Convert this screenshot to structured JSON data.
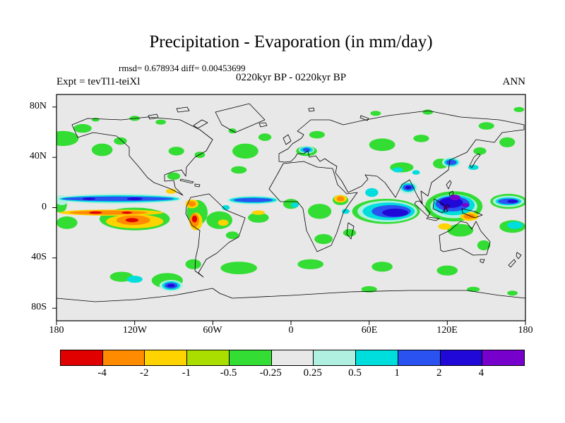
{
  "header": {
    "title": "Precipitation - Evaporation (in mm/day)",
    "stats_line": "rmsd= 0.678934  diff= 0.00453699",
    "comparison_line": "0220kyr BP - 0220kyr BP",
    "expt_label": "Expt = tevTl1-teiXl",
    "season_label": "ANN"
  },
  "axes": {
    "lat_labels": [
      "80N",
      "40N",
      "0",
      "40S",
      "80S"
    ],
    "lat_ticks_deg": [
      80,
      40,
      0,
      -40,
      -80
    ],
    "lon_labels": [
      "180",
      "120W",
      "60W",
      "0",
      "60E",
      "120E",
      "180"
    ],
    "lon_ticks_deg": [
      -180,
      -120,
      -60,
      0,
      60,
      120,
      180
    ]
  },
  "colorbar": {
    "colors": [
      "#e10000",
      "#ff8c00",
      "#ffd300",
      "#aadd00",
      "#33dd33",
      "#e8e8e8",
      "#b0f0e0",
      "#00dddd",
      "#2a52f0",
      "#2008d8",
      "#7700cc"
    ],
    "labels": [
      "-4",
      "-2",
      "-1",
      "-0.5",
      "-0.25",
      "0.25",
      "0.5",
      "1",
      "2",
      "4"
    ]
  },
  "chart_data": {
    "type": "heatmap",
    "subtype": "filled-contour world map",
    "variable": "Precipitation - Evaporation",
    "units": "mm/day",
    "rmsd": 0.678934,
    "diff": 0.00453699,
    "experiment": "tevTl1-teiXl",
    "period": "0220kyr BP - 0220kyr BP",
    "season": "ANN",
    "lon_range": [
      -180,
      180
    ],
    "lat_range": [
      -90,
      90
    ],
    "contour_levels": [
      -4,
      -2,
      -1,
      -0.5,
      -0.25,
      0.25,
      0.5,
      1,
      2,
      4
    ],
    "bins": [
      {
        "range": "< -4",
        "color": "#e10000"
      },
      {
        "range": "-4 to -2",
        "color": "#ff8c00"
      },
      {
        "range": "-2 to -1",
        "color": "#ffd300"
      },
      {
        "range": "-1 to -0.5",
        "color": "#aadd00"
      },
      {
        "range": "-0.5 to -0.25",
        "color": "#33dd33"
      },
      {
        "range": "-0.25 to 0.25",
        "color": "#e8e8e8"
      },
      {
        "range": "0.25 to 0.5",
        "color": "#b0f0e0"
      },
      {
        "range": "0.5 to 1",
        "color": "#00dddd"
      },
      {
        "range": "1 to 2",
        "color": "#2a52f0"
      },
      {
        "range": "2 to 4",
        "color": "#2008d8"
      },
      {
        "range": "> 4",
        "color": "#7700cc"
      }
    ],
    "feature_format": [
      "color_index",
      "lon_center_deg",
      "lat_center_deg",
      "rx_deg",
      "ry_deg"
    ],
    "features": [
      [
        4,
        -175,
        55,
        12,
        6
      ],
      [
        4,
        -160,
        63,
        7,
        3.5
      ],
      [
        4,
        -145,
        46,
        8,
        5
      ],
      [
        4,
        -131,
        53,
        5,
        3
      ],
      [
        4,
        -120,
        71,
        4,
        2
      ],
      [
        4,
        -100,
        68,
        4,
        2
      ],
      [
        4,
        -88,
        45,
        6,
        3.5
      ],
      [
        4,
        -70,
        42,
        4,
        2.5
      ],
      [
        4,
        -35,
        45,
        10,
        6
      ],
      [
        4,
        -20,
        56,
        5,
        3
      ],
      [
        4,
        -45,
        61,
        3,
        2
      ],
      [
        4,
        20,
        58,
        6,
        3
      ],
      [
        4,
        70,
        50,
        10,
        5
      ],
      [
        4,
        100,
        55,
        6,
        3
      ],
      [
        4,
        150,
        65,
        6,
        3
      ],
      [
        4,
        166,
        52,
        6,
        4
      ],
      [
        4,
        145,
        45,
        5,
        3
      ],
      [
        4,
        85,
        32,
        9,
        4
      ],
      [
        4,
        115,
        35,
        6,
        4
      ],
      [
        4,
        12,
        45,
        8,
        4
      ],
      [
        4,
        -40,
        30,
        6,
        3
      ],
      [
        4,
        -90,
        25,
        5,
        3
      ],
      [
        4,
        -120,
        -9,
        27,
        9
      ],
      [
        4,
        -72,
        -4,
        8,
        10
      ],
      [
        4,
        -55,
        -10,
        10,
        7
      ],
      [
        4,
        -45,
        -22,
        5,
        3
      ],
      [
        4,
        -25,
        -8,
        8,
        4
      ],
      [
        4,
        0,
        3,
        6,
        4
      ],
      [
        4,
        22,
        -3,
        9,
        6
      ],
      [
        4,
        38,
        6,
        6,
        4
      ],
      [
        4,
        25,
        -25,
        7,
        4
      ],
      [
        4,
        45,
        -20,
        5,
        3
      ],
      [
        4,
        73,
        -3,
        26,
        10
      ],
      [
        4,
        125,
        1,
        22,
        12
      ],
      [
        4,
        130,
        -18,
        10,
        5
      ],
      [
        4,
        148,
        -30,
        5,
        4
      ],
      [
        4,
        170,
        -15,
        10,
        5
      ],
      [
        4,
        -172,
        -12,
        8,
        5
      ],
      [
        4,
        167,
        5,
        14,
        6
      ],
      [
        4,
        -177,
        2,
        5,
        6
      ],
      [
        4,
        -40,
        -48,
        14,
        5
      ],
      [
        4,
        -75,
        -45,
        6,
        4
      ],
      [
        4,
        15,
        -45,
        10,
        4
      ],
      [
        4,
        70,
        -47,
        8,
        4
      ],
      [
        4,
        120,
        -50,
        8,
        4
      ],
      [
        4,
        -130,
        -55,
        9,
        4
      ],
      [
        4,
        -95,
        -58,
        12,
        6
      ],
      [
        4,
        60,
        -65,
        6,
        2.5
      ],
      [
        4,
        140,
        -65,
        5,
        2
      ],
      [
        4,
        170,
        -68,
        4,
        2
      ],
      [
        4,
        175,
        78,
        4,
        2
      ],
      [
        4,
        65,
        75,
        4,
        2
      ],
      [
        4,
        105,
        76,
        4,
        2
      ],
      [
        4,
        -150,
        70,
        3,
        1.5
      ],
      [
        3,
        -120,
        -11,
        17,
        4.5
      ],
      [
        3,
        -138,
        -4,
        34,
        2.2
      ],
      [
        6,
        -132,
        7,
        48,
        4
      ],
      [
        6,
        -29,
        6,
        20,
        3.5
      ],
      [
        6,
        74,
        -3,
        23,
        8.5
      ],
      [
        6,
        125,
        1,
        18,
        9.5
      ],
      [
        6,
        167,
        5,
        12,
        4.5
      ],
      [
        6,
        12,
        46,
        6,
        3
      ],
      [
        6,
        -92,
        -62,
        9,
        4.5
      ],
      [
        6,
        90,
        16,
        7,
        5
      ],
      [
        6,
        123,
        36,
        7,
        4
      ],
      [
        6,
        -176,
        6,
        5,
        4
      ],
      [
        2,
        -138,
        -4,
        40,
        2.4
      ],
      [
        2,
        -120,
        -11,
        22,
        5.5
      ],
      [
        2,
        -73,
        -11,
        5,
        7
      ],
      [
        2,
        -76,
        3,
        5,
        3.5
      ],
      [
        2,
        -52,
        -12,
        4,
        2.5
      ],
      [
        2,
        38,
        7,
        5,
        3
      ],
      [
        2,
        137,
        -7,
        7,
        3.5
      ],
      [
        2,
        118,
        -15,
        5,
        2.5
      ],
      [
        2,
        -92,
        13,
        4,
        2
      ],
      [
        2,
        -25,
        -4,
        5,
        1.8
      ],
      [
        7,
        -132,
        7,
        46,
        2.8
      ],
      [
        7,
        -29,
        6,
        18,
        2.5
      ],
      [
        7,
        75,
        -3,
        20,
        7
      ],
      [
        7,
        125,
        2,
        16,
        8
      ],
      [
        7,
        90,
        16,
        5.5,
        3.5
      ],
      [
        7,
        62,
        12,
        5,
        3.5
      ],
      [
        7,
        167,
        5,
        10,
        3.2
      ],
      [
        7,
        12,
        46,
        5,
        2.3
      ],
      [
        7,
        123,
        36,
        5.5,
        3
      ],
      [
        7,
        -92,
        -62,
        7,
        3.5
      ],
      [
        7,
        172,
        -14,
        6,
        3
      ],
      [
        7,
        -120,
        -57,
        6,
        2.8
      ],
      [
        7,
        82,
        30,
        4,
        2
      ],
      [
        7,
        96,
        28,
        3,
        1.8
      ],
      [
        7,
        -50,
        0,
        3,
        2
      ],
      [
        7,
        3,
        2,
        3,
        2
      ],
      [
        7,
        42,
        -3,
        3,
        2
      ],
      [
        7,
        140,
        32,
        4,
        2
      ],
      [
        1,
        -140,
        -4,
        30,
        1.7
      ],
      [
        1,
        -121,
        -10,
        13,
        3.8
      ],
      [
        1,
        -74,
        -10,
        3.5,
        5.5
      ],
      [
        1,
        -76,
        3,
        3,
        2.2
      ],
      [
        1,
        38,
        7,
        3,
        2
      ],
      [
        1,
        137,
        -7,
        4.5,
        2
      ],
      [
        8,
        -133,
        7,
        43,
        1.8
      ],
      [
        8,
        -29,
        6,
        15,
        1.7
      ],
      [
        8,
        77,
        -3,
        15,
        5
      ],
      [
        8,
        124,
        3,
        13,
        6
      ],
      [
        8,
        90,
        16,
        4,
        2.4
      ],
      [
        8,
        167,
        5,
        8,
        2.2
      ],
      [
        8,
        123,
        36,
        4,
        2
      ],
      [
        8,
        12,
        46,
        3,
        1.5
      ],
      [
        8,
        -92,
        -62,
        5,
        2.4
      ],
      [
        0,
        -150,
        -4,
        5,
        1
      ],
      [
        0,
        -126,
        -4,
        4,
        0.9
      ],
      [
        0,
        -122,
        -10,
        5,
        1.7
      ],
      [
        0,
        -74,
        -9,
        2,
        2.8
      ],
      [
        9,
        80,
        -4,
        10,
        3.2
      ],
      [
        9,
        123,
        4,
        9,
        4.2
      ],
      [
        9,
        -120,
        7,
        6,
        1.1
      ],
      [
        9,
        -155,
        7,
        5,
        1
      ],
      [
        9,
        170,
        5,
        4,
        1.3
      ],
      [
        9,
        -92,
        -62,
        3,
        1.3
      ],
      [
        9,
        90,
        16,
        2.2,
        1.3
      ],
      [
        10,
        126,
        8,
        4,
        2.2
      ],
      [
        10,
        134,
        2,
        3,
        1.6
      ],
      [
        10,
        119,
        0,
        2.5,
        1.4
      ]
    ]
  }
}
